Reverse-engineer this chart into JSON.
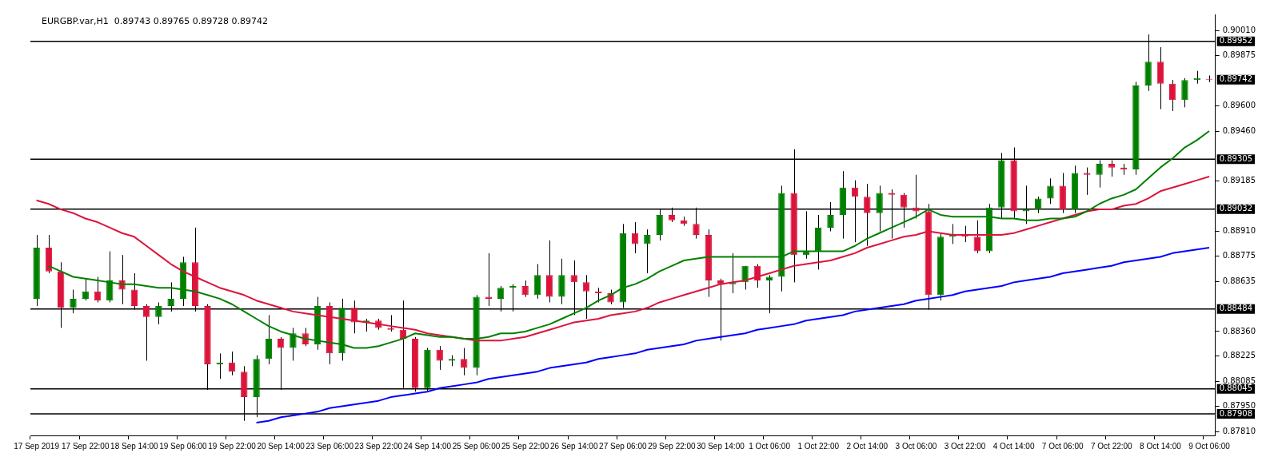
{
  "chart_data": {
    "type": "candlestick",
    "title": "EURGBP.var,H1  0.89743 0.89765 0.89728 0.89742",
    "categories": [
      "17 Sep 2019",
      null,
      null,
      null,
      "17 Sep 22:00",
      null,
      null,
      null,
      "18 Sep 14:00",
      null,
      null,
      null,
      "19 Sep 06:00",
      null,
      null,
      null,
      "19 Sep 22:00",
      null,
      null,
      null,
      "20 Sep 14:00",
      null,
      null,
      null,
      "23 Sep 06:00",
      null,
      null,
      null,
      "23 Sep 22:00",
      null,
      null,
      null,
      "24 Sep 14:00",
      null,
      null,
      null,
      "25 Sep 06:00",
      null,
      null,
      null,
      "25 Sep 22:00",
      null,
      null,
      null,
      "26 Sep 14:00",
      null,
      null,
      null,
      "27 Sep 06:00",
      null,
      null,
      null,
      "29 Sep 22:00",
      null,
      null,
      null,
      "30 Sep 14:00",
      null,
      null,
      null,
      "1 Oct 06:00",
      null,
      null,
      null,
      "1 Oct 22:00",
      null,
      null,
      null,
      "2 Oct 14:00",
      null,
      null,
      null,
      "3 Oct 06:00",
      null,
      null,
      null,
      "3 Oct 22:00",
      null,
      null,
      null,
      "4 Oct 14:00",
      null,
      null,
      null,
      "7 Oct 06:00",
      null,
      null,
      null,
      "7 Oct 22:00",
      null,
      null,
      null,
      "8 Oct 14:00",
      null,
      null,
      null,
      "9 Oct 06:00"
    ],
    "ohlc": [
      [
        0.8854,
        0.8889,
        0.885,
        0.8882
      ],
      [
        0.8882,
        0.8889,
        0.8868,
        0.8869
      ],
      [
        0.8869,
        0.8874,
        0.8838,
        0.8849
      ],
      [
        0.8849,
        0.8859,
        0.8846,
        0.8854
      ],
      [
        0.8854,
        0.8865,
        0.8853,
        0.8858
      ],
      [
        0.8858,
        0.8866,
        0.8852,
        0.8853
      ],
      [
        0.8853,
        0.888,
        0.8852,
        0.8864
      ],
      [
        0.8864,
        0.8878,
        0.8851,
        0.8859
      ],
      [
        0.8859,
        0.8868,
        0.8848,
        0.885
      ],
      [
        0.885,
        0.8851,
        0.882,
        0.8844
      ],
      [
        0.8844,
        0.8852,
        0.884,
        0.885
      ],
      [
        0.885,
        0.8863,
        0.8847,
        0.8854
      ],
      [
        0.8854,
        0.8877,
        0.885,
        0.8874
      ],
      [
        0.8874,
        0.8893,
        0.8847,
        0.885
      ],
      [
        0.885,
        0.8851,
        0.8804,
        0.8818
      ],
      [
        0.8818,
        0.8824,
        0.881,
        0.8819
      ],
      [
        0.8819,
        0.8825,
        0.8812,
        0.8814
      ],
      [
        0.8814,
        0.8817,
        0.8787,
        0.88
      ],
      [
        0.88,
        0.8823,
        0.8789,
        0.8821
      ],
      [
        0.8821,
        0.8845,
        0.8818,
        0.8832
      ],
      [
        0.8832,
        0.8833,
        0.8804,
        0.8827
      ],
      [
        0.8827,
        0.8838,
        0.882,
        0.8835
      ],
      [
        0.8835,
        0.8838,
        0.8828,
        0.8829
      ],
      [
        0.8829,
        0.8855,
        0.8826,
        0.885
      ],
      [
        0.885,
        0.8852,
        0.8818,
        0.8824
      ],
      [
        0.8824,
        0.8854,
        0.882,
        0.8849
      ],
      [
        0.8849,
        0.8853,
        0.8835,
        0.8841
      ],
      [
        0.8841,
        0.8843,
        0.8836,
        0.8842
      ],
      [
        0.8842,
        0.8843,
        0.8837,
        0.8838
      ],
      [
        0.8838,
        0.8845,
        0.8836,
        0.8837
      ],
      [
        0.8837,
        0.8853,
        0.8805,
        0.8832
      ],
      [
        0.8832,
        0.8833,
        0.8803,
        0.8805
      ],
      [
        0.8805,
        0.8827,
        0.8803,
        0.8826
      ],
      [
        0.8826,
        0.8828,
        0.8815,
        0.882
      ],
      [
        0.882,
        0.8823,
        0.8817,
        0.8821
      ],
      [
        0.8821,
        0.8827,
        0.8812,
        0.8816
      ],
      [
        0.8816,
        0.8856,
        0.8812,
        0.8855
      ],
      [
        0.8855,
        0.8879,
        0.885,
        0.8854
      ],
      [
        0.8854,
        0.8861,
        0.8847,
        0.886
      ],
      [
        0.886,
        0.8862,
        0.8847,
        0.8861
      ],
      [
        0.8861,
        0.8864,
        0.8855,
        0.8856
      ],
      [
        0.8856,
        0.8873,
        0.8854,
        0.8867
      ],
      [
        0.8867,
        0.8886,
        0.8852,
        0.8855
      ],
      [
        0.8855,
        0.8876,
        0.8851,
        0.8867
      ],
      [
        0.8867,
        0.8875,
        0.8845,
        0.8863
      ],
      [
        0.8863,
        0.8867,
        0.8843,
        0.8858
      ],
      [
        0.8858,
        0.886,
        0.8852,
        0.8857
      ],
      [
        0.8857,
        0.8859,
        0.8851,
        0.8852
      ],
      [
        0.8852,
        0.8895,
        0.8849,
        0.889
      ],
      [
        0.889,
        0.8896,
        0.8879,
        0.8884
      ],
      [
        0.8884,
        0.8892,
        0.8868,
        0.8889
      ],
      [
        0.8889,
        0.8903,
        0.8886,
        0.89
      ],
      [
        0.89,
        0.8904,
        0.8896,
        0.8897
      ],
      [
        0.8897,
        0.8899,
        0.8894,
        0.8895
      ],
      [
        0.8895,
        0.8904,
        0.8887,
        0.8889
      ],
      [
        0.8889,
        0.8892,
        0.8855,
        0.8864
      ],
      [
        0.8864,
        0.8865,
        0.8831,
        0.8862
      ],
      [
        0.8862,
        0.8879,
        0.8857,
        0.8863
      ],
      [
        0.8863,
        0.8872,
        0.8859,
        0.8872
      ],
      [
        0.8872,
        0.8873,
        0.886,
        0.8864
      ],
      [
        0.8864,
        0.8867,
        0.8846,
        0.8866
      ],
      [
        0.8866,
        0.8916,
        0.8858,
        0.8912
      ],
      [
        0.8912,
        0.8936,
        0.8863,
        0.8878
      ],
      [
        0.8878,
        0.8902,
        0.8876,
        0.888
      ],
      [
        0.888,
        0.89,
        0.887,
        0.8893
      ],
      [
        0.8893,
        0.8907,
        0.8891,
        0.89
      ],
      [
        0.89,
        0.8924,
        0.8887,
        0.8915
      ],
      [
        0.8915,
        0.8919,
        0.8885,
        0.891
      ],
      [
        0.891,
        0.8917,
        0.8883,
        0.8901
      ],
      [
        0.8901,
        0.8916,
        0.8891,
        0.8912
      ],
      [
        0.8912,
        0.8914,
        0.8887,
        0.8911
      ],
      [
        0.8911,
        0.8912,
        0.8893,
        0.8904
      ],
      [
        0.8904,
        0.8922,
        0.8898,
        0.8902
      ],
      [
        0.8902,
        0.8906,
        0.8848,
        0.8856
      ],
      [
        0.8856,
        0.889,
        0.8853,
        0.8888
      ],
      [
        0.8888,
        0.8895,
        0.8884,
        0.8889
      ],
      [
        0.8889,
        0.8894,
        0.8885,
        0.8888
      ],
      [
        0.8888,
        0.8897,
        0.8879,
        0.888
      ],
      [
        0.888,
        0.8906,
        0.8879,
        0.8904
      ],
      [
        0.8904,
        0.8934,
        0.8898,
        0.893
      ],
      [
        0.893,
        0.8937,
        0.8898,
        0.8902
      ],
      [
        0.8902,
        0.8916,
        0.8895,
        0.8903
      ],
      [
        0.8903,
        0.891,
        0.8901,
        0.8909
      ],
      [
        0.8909,
        0.892,
        0.8906,
        0.8916
      ],
      [
        0.8916,
        0.8923,
        0.8901,
        0.8903
      ],
      [
        0.8903,
        0.8927,
        0.8901,
        0.8923
      ],
      [
        0.8923,
        0.8926,
        0.8911,
        0.8922
      ],
      [
        0.8922,
        0.893,
        0.8915,
        0.8928
      ],
      [
        0.8928,
        0.893,
        0.8921,
        0.8926
      ],
      [
        0.8926,
        0.8928,
        0.8922,
        0.8925
      ],
      [
        0.8925,
        0.8973,
        0.8922,
        0.8971
      ],
      [
        0.8971,
        0.8999,
        0.8968,
        0.8984
      ],
      [
        0.8984,
        0.8992,
        0.8958,
        0.8972
      ],
      [
        0.8972,
        0.8974,
        0.8957,
        0.8963
      ],
      [
        0.8963,
        0.8975,
        0.8959,
        0.8974
      ],
      [
        0.8974,
        0.8979,
        0.8972,
        0.8975
      ],
      [
        0.89743,
        0.89765,
        0.89728,
        0.89742
      ]
    ],
    "colors": [
      "#008000",
      "#dc143c",
      "#dc143c",
      "#008000",
      "#008000",
      "#dc143c",
      "#008000",
      "#dc143c",
      "#dc143c",
      "#dc143c",
      "#008000",
      "#008000",
      "#008000",
      "#dc143c",
      "#dc143c",
      "#008000",
      "#dc143c",
      "#dc143c",
      "#008000",
      "#008000",
      "#dc143c",
      "#008000",
      "#dc143c",
      "#008000",
      "#dc143c",
      "#008000",
      "#dc143c",
      "#008000",
      "#dc143c",
      "#dc143c",
      "#dc143c",
      "#dc143c",
      "#008000",
      "#dc143c",
      "#008000",
      "#dc143c",
      "#008000",
      "#dc143c",
      "#008000",
      "#008000",
      "#dc143c",
      "#008000",
      "#dc143c",
      "#008000",
      "#dc143c",
      "#dc143c",
      "#dc143c",
      "#dc143c",
      "#008000",
      "#dc143c",
      "#008000",
      "#008000",
      "#dc143c",
      "#dc143c",
      "#dc143c",
      "#dc143c",
      "#dc143c",
      "#008000",
      "#008000",
      "#dc143c",
      "#008000",
      "#008000",
      "#dc143c",
      "#008000",
      "#008000",
      "#008000",
      "#008000",
      "#dc143c",
      "#dc143c",
      "#008000",
      "#dc143c",
      "#dc143c",
      "#dc143c",
      "#dc143c",
      "#008000",
      "#008000",
      "#dc143c",
      "#dc143c",
      "#008000",
      "#008000",
      "#dc143c",
      "#008000",
      "#008000",
      "#008000",
      "#dc143c",
      "#008000",
      "#dc143c",
      "#008000",
      "#dc143c",
      "#dc143c",
      "#008000",
      "#008000",
      "#dc143c",
      "#dc143c",
      "#008000",
      "#008000",
      "#dc143c"
    ],
    "series": [
      {
        "type": "line",
        "color": "#008000",
        "marker": "none",
        "values": [
          null,
          0.8872,
          0.8869,
          0.8866,
          0.8865,
          0.8864,
          0.8863,
          0.8862,
          0.8862,
          0.8861,
          0.886,
          0.886,
          0.8859,
          0.8858,
          0.8856,
          0.8854,
          0.8851,
          0.8847,
          0.8843,
          0.8839,
          0.8836,
          0.8834,
          0.8832,
          0.8831,
          0.883,
          0.8829,
          0.8827,
          0.8827,
          0.8828,
          0.883,
          0.8832,
          0.8835,
          0.8834,
          0.8833,
          0.8833,
          0.8832,
          0.8832,
          0.8833,
          0.8835,
          0.8835,
          0.8836,
          0.8838,
          0.884,
          0.8843,
          0.8846,
          0.8849,
          0.8853,
          0.8856,
          0.886,
          0.8862,
          0.8865,
          0.8869,
          0.8872,
          0.8875,
          0.8876,
          0.8877,
          0.8877,
          0.8877,
          0.8877,
          0.8877,
          0.8877,
          0.8877,
          0.888,
          0.888,
          0.888,
          0.888,
          0.888,
          0.8883,
          0.8887,
          0.889,
          0.8893,
          0.8896,
          0.8899,
          0.8903,
          0.89,
          0.8899,
          0.8899,
          0.8899,
          0.8899,
          0.8898,
          0.8898,
          0.8897,
          0.8897,
          0.8898,
          0.8898,
          0.8899,
          0.8902,
          0.8906,
          0.8909,
          0.8911,
          0.8914,
          0.892,
          0.8926,
          0.8931,
          0.8937,
          0.8941,
          0.8946
        ]
      },
      {
        "type": "line",
        "color": "#dc143c",
        "marker": "none",
        "values": [
          0.8908,
          0.8906,
          0.8903,
          0.8901,
          0.8898,
          0.8896,
          0.8893,
          0.889,
          0.8888,
          0.8883,
          0.8878,
          0.8873,
          0.8869,
          0.8866,
          0.8863,
          0.886,
          0.8858,
          0.8856,
          0.8853,
          0.8851,
          0.8849,
          0.8847,
          0.8846,
          0.8845,
          0.8844,
          0.8843,
          0.8842,
          0.8841,
          0.884,
          0.8839,
          0.8838,
          0.8837,
          0.8835,
          0.8834,
          0.8833,
          0.8832,
          0.8831,
          0.8831,
          0.8831,
          0.8832,
          0.8833,
          0.8835,
          0.8837,
          0.8839,
          0.8841,
          0.8842,
          0.8843,
          0.8845,
          0.8846,
          0.8847,
          0.8849,
          0.8852,
          0.8854,
          0.8856,
          0.8858,
          0.886,
          0.8862,
          0.8863,
          0.8864,
          0.8866,
          0.8868,
          0.887,
          0.8872,
          0.8873,
          0.8874,
          0.8875,
          0.8877,
          0.8879,
          0.8882,
          0.8884,
          0.8886,
          0.8888,
          0.8889,
          0.8891,
          0.889,
          0.8889,
          0.8889,
          0.8889,
          0.8889,
          0.8889,
          0.889,
          0.8892,
          0.8894,
          0.8896,
          0.8898,
          0.89,
          0.8902,
          0.8903,
          0.8903,
          0.8905,
          0.8906,
          0.8909,
          0.8913,
          0.8915,
          0.8917,
          0.8919,
          0.8921
        ]
      },
      {
        "type": "line",
        "color": "#0000ff",
        "marker": "none",
        "values": [
          null,
          null,
          null,
          null,
          null,
          null,
          null,
          null,
          null,
          null,
          null,
          null,
          null,
          null,
          null,
          null,
          null,
          null,
          0.8786,
          0.8787,
          0.8789,
          0.879,
          0.8791,
          0.8792,
          0.8794,
          0.8795,
          0.8796,
          0.8797,
          0.8798,
          0.88,
          0.8801,
          0.8802,
          0.8803,
          0.8805,
          0.8806,
          0.8807,
          0.8808,
          0.881,
          0.8811,
          0.8812,
          0.8813,
          0.8814,
          0.8816,
          0.8817,
          0.8818,
          0.8819,
          0.8821,
          0.8822,
          0.8823,
          0.8824,
          0.8826,
          0.8827,
          0.8828,
          0.8829,
          0.8831,
          0.8832,
          0.8833,
          0.8834,
          0.8835,
          0.8837,
          0.8838,
          0.8839,
          0.884,
          0.8842,
          0.8843,
          0.8844,
          0.8845,
          0.8847,
          0.8848,
          0.8849,
          0.885,
          0.8851,
          0.8853,
          0.8854,
          0.8855,
          0.8856,
          0.8858,
          0.8859,
          0.886,
          0.8861,
          0.8863,
          0.8864,
          0.8865,
          0.8866,
          0.8868,
          0.8869,
          0.887,
          0.8871,
          0.8872,
          0.8874,
          0.8875,
          0.8876,
          0.8877,
          0.8879,
          0.888,
          0.8881,
          0.8882
        ]
      }
    ],
    "ylim": [
      0.8779,
      0.901
    ],
    "yticks": [
      {
        "value": 0.9001,
        "label": "0.90010"
      },
      0.89875,
      {
        "value": 0.896,
        "label": "0.89600"
      },
      {
        "value": 0.8946,
        "label": "0.89460"
      },
      0.89185,
      {
        "value": 0.8891,
        "label": "0.88910"
      },
      0.88775,
      0.88635,
      {
        "value": 0.8836,
        "label": "0.88360"
      },
      0.88225,
      0.88085,
      {
        "value": 0.8795,
        "label": "0.87950"
      },
      {
        "value": 0.8781,
        "label": "0.87810"
      }
    ],
    "ref_lines": [
      {
        "axis": "y",
        "value": 0.89952,
        "label": "0.89952",
        "color": "#000000"
      },
      {
        "axis": "y",
        "value": 0.89305,
        "label": "0.89305",
        "color": "#000000"
      },
      {
        "axis": "y",
        "value": 0.89032,
        "label": "0.89032",
        "color": "#000000"
      },
      {
        "axis": "y",
        "value": 0.88484,
        "label": "0.88484",
        "color": "#000000"
      },
      {
        "axis": "y",
        "value": 0.88045,
        "label": "0.88045",
        "color": "#000000"
      },
      {
        "axis": "y",
        "value": 0.87908,
        "label": "0.87908",
        "color": "#000000"
      }
    ],
    "annotations": [
      "0.89742"
    ],
    "grid": false,
    "legend": false
  }
}
